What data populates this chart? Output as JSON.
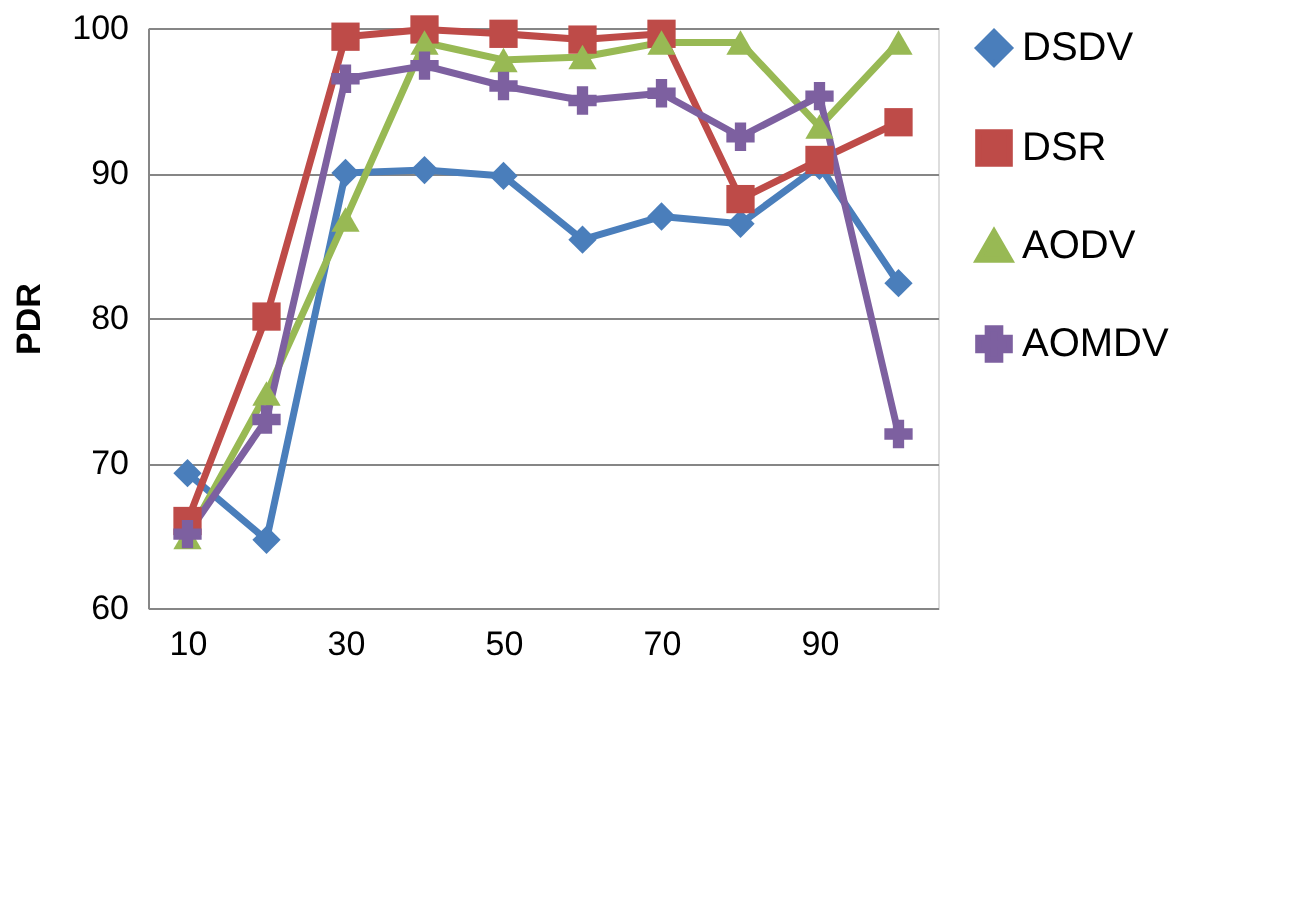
{
  "chart_data": {
    "type": "line",
    "ylabel": "PDR",
    "x": [
      10,
      20,
      30,
      40,
      50,
      60,
      70,
      80,
      90,
      100
    ],
    "xlim": [
      5,
      105
    ],
    "xticks": [
      10,
      30,
      50,
      70,
      90
    ],
    "ylim": [
      60,
      100
    ],
    "yticks": [
      60,
      70,
      80,
      90,
      100
    ],
    "grid": "y",
    "legend": "right",
    "series": [
      {
        "name": "DSDV",
        "color": "#4a7ebb",
        "marker": "diamond",
        "values": [
          69.3,
          64.7,
          90,
          90.2,
          89.8,
          85.4,
          87,
          86.5,
          90.5,
          82.4
        ]
      },
      {
        "name": "DSR",
        "color": "#be4b48",
        "marker": "square",
        "values": [
          66,
          80.1,
          99.4,
          99.9,
          99.6,
          99.2,
          99.6,
          88.2,
          90.9,
          93.5
        ]
      },
      {
        "name": "AODV",
        "color": "#98b954",
        "marker": "triangle",
        "values": [
          64.9,
          74.8,
          86.8,
          99,
          97.8,
          98,
          99,
          99,
          93.2,
          99
        ]
      },
      {
        "name": "AOMDV",
        "color": "#7d60a0",
        "marker": "cross",
        "values": [
          65.1,
          73,
          96.5,
          97.4,
          96,
          95,
          95.5,
          92.5,
          95.3,
          72
        ]
      }
    ]
  }
}
